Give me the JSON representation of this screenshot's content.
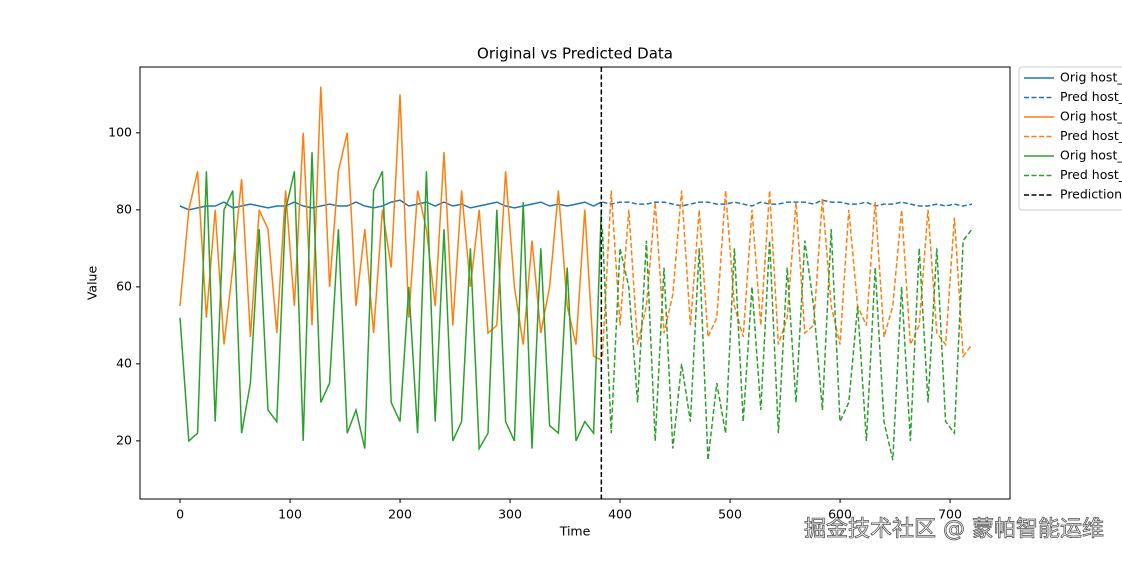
{
  "chart_data": {
    "type": "line",
    "title": "Original vs Predicted Data",
    "xlabel": "Time",
    "ylabel": "Value",
    "xlim": [
      -36.4,
      754.5
    ],
    "ylim": [
      4.9,
      117.1
    ],
    "xticks": [
      0,
      100,
      200,
      300,
      400,
      500,
      600,
      700
    ],
    "yticks": [
      20,
      40,
      60,
      80,
      100
    ],
    "legend": "outside-upper-right",
    "series": [
      {
        "name": "Orig host_",
        "color": "#1f77b4",
        "dash": false,
        "x": [
          0,
          8,
          16,
          24,
          32,
          40,
          48,
          56,
          64,
          72,
          80,
          88,
          96,
          104,
          112,
          120,
          128,
          136,
          144,
          152,
          160,
          168,
          176,
          184,
          192,
          200,
          208,
          216,
          224,
          232,
          240,
          248,
          256,
          264,
          272,
          280,
          288,
          296,
          304,
          312,
          320,
          328,
          336,
          344,
          352,
          360,
          368,
          376,
          383
        ],
        "values": [
          81,
          80,
          80.5,
          81,
          81,
          82,
          80.5,
          81,
          81.5,
          81,
          80.5,
          81,
          81,
          82,
          81,
          80.5,
          81,
          81.5,
          81,
          81,
          82,
          81,
          80.5,
          81,
          82,
          82.5,
          81,
          81.5,
          82,
          81,
          82,
          81,
          81.5,
          80.5,
          81,
          81.5,
          82,
          81,
          80.5,
          81,
          81.5,
          82,
          81,
          81.5,
          81,
          81.5,
          82,
          81,
          82
        ]
      },
      {
        "name": "Pred host_",
        "color": "#1f77b4",
        "dash": true,
        "x": [
          384,
          392,
          400,
          408,
          416,
          424,
          432,
          440,
          448,
          456,
          464,
          472,
          480,
          488,
          496,
          504,
          512,
          520,
          528,
          536,
          544,
          552,
          560,
          568,
          576,
          584,
          592,
          600,
          608,
          616,
          624,
          632,
          640,
          648,
          656,
          664,
          672,
          680,
          688,
          696,
          704,
          712,
          720
        ],
        "values": [
          82,
          81.5,
          82,
          82,
          81.5,
          81.5,
          82,
          82,
          81.5,
          81,
          81.5,
          82,
          82,
          81.5,
          81.5,
          82,
          81.5,
          81,
          82,
          81.5,
          81.5,
          82,
          82,
          82,
          81.5,
          82.5,
          82,
          82,
          81.5,
          81.5,
          82,
          81,
          81.5,
          81.5,
          82,
          81.5,
          81,
          81,
          81.5,
          81,
          81.5,
          81,
          81.5
        ]
      },
      {
        "name": "Orig host_",
        "color": "#ff7f0e",
        "dash": false,
        "x": [
          0,
          8,
          16,
          24,
          32,
          40,
          48,
          56,
          64,
          72,
          80,
          88,
          96,
          104,
          112,
          120,
          128,
          136,
          144,
          152,
          160,
          168,
          176,
          184,
          192,
          200,
          208,
          216,
          224,
          232,
          240,
          248,
          256,
          264,
          272,
          280,
          288,
          296,
          304,
          312,
          320,
          328,
          336,
          344,
          352,
          360,
          368,
          376,
          383
        ],
        "values": [
          55,
          80,
          90,
          52,
          80,
          45,
          65,
          88,
          47,
          80,
          75,
          48,
          85,
          55,
          100,
          50,
          112,
          60,
          90,
          100,
          55,
          75,
          48,
          80,
          65,
          110,
          52,
          85,
          75,
          55,
          95,
          50,
          85,
          60,
          80,
          48,
          50,
          90,
          60,
          45,
          72,
          48,
          60,
          85,
          55,
          45,
          80,
          42,
          41
        ]
      },
      {
        "name": "Pred host_",
        "color": "#ff7f0e",
        "dash": true,
        "x": [
          384,
          392,
          400,
          408,
          416,
          424,
          432,
          440,
          448,
          456,
          464,
          472,
          480,
          488,
          496,
          504,
          512,
          520,
          528,
          536,
          544,
          552,
          560,
          568,
          576,
          584,
          592,
          600,
          608,
          616,
          624,
          632,
          640,
          648,
          656,
          664,
          672,
          680,
          688,
          696,
          704,
          712,
          720
        ],
        "values": [
          42,
          85,
          50,
          80,
          45,
          55,
          82,
          48,
          58,
          85,
          50,
          80,
          47,
          52,
          85,
          55,
          47,
          80,
          50,
          85,
          45,
          52,
          82,
          48,
          50,
          83,
          55,
          45,
          80,
          55,
          50,
          82,
          47,
          55,
          80,
          45,
          50,
          80,
          48,
          45,
          78,
          42,
          45
        ]
      },
      {
        "name": "Orig host_",
        "color": "#2ca02c",
        "dash": false,
        "x": [
          0,
          8,
          16,
          24,
          32,
          40,
          48,
          56,
          64,
          72,
          80,
          88,
          96,
          104,
          112,
          120,
          128,
          136,
          144,
          152,
          160,
          168,
          176,
          184,
          192,
          200,
          208,
          216,
          224,
          232,
          240,
          248,
          256,
          264,
          272,
          280,
          288,
          296,
          304,
          312,
          320,
          328,
          336,
          344,
          352,
          360,
          368,
          376,
          383
        ],
        "values": [
          52,
          20,
          22,
          90,
          25,
          80,
          85,
          22,
          35,
          75,
          28,
          25,
          80,
          90,
          20,
          95,
          30,
          35,
          75,
          22,
          28,
          18,
          85,
          90,
          30,
          25,
          60,
          22,
          90,
          25,
          75,
          20,
          25,
          70,
          18,
          22,
          80,
          25,
          20,
          82,
          18,
          70,
          24,
          22,
          65,
          20,
          25,
          22,
          80
        ]
      },
      {
        "name": "Pred host_",
        "color": "#2ca02c",
        "dash": true,
        "x": [
          384,
          392,
          400,
          408,
          416,
          424,
          432,
          440,
          448,
          456,
          464,
          472,
          480,
          488,
          496,
          504,
          512,
          520,
          528,
          536,
          544,
          552,
          560,
          568,
          576,
          584,
          592,
          600,
          608,
          616,
          624,
          632,
          640,
          648,
          656,
          664,
          672,
          680,
          688,
          696,
          704,
          712,
          720
        ],
        "values": [
          75,
          22,
          70,
          60,
          30,
          72,
          20,
          65,
          18,
          40,
          25,
          70,
          15,
          35,
          22,
          70,
          25,
          60,
          28,
          72,
          22,
          65,
          30,
          72,
          55,
          28,
          75,
          25,
          30,
          55,
          20,
          65,
          25,
          15,
          60,
          20,
          70,
          30,
          70,
          25,
          22,
          72,
          75
        ]
      }
    ],
    "vline": {
      "name": "Prediction",
      "x": 383,
      "color": "#000000"
    }
  },
  "watermark": "掘金技术社区 @ 蒙帕智能运维"
}
